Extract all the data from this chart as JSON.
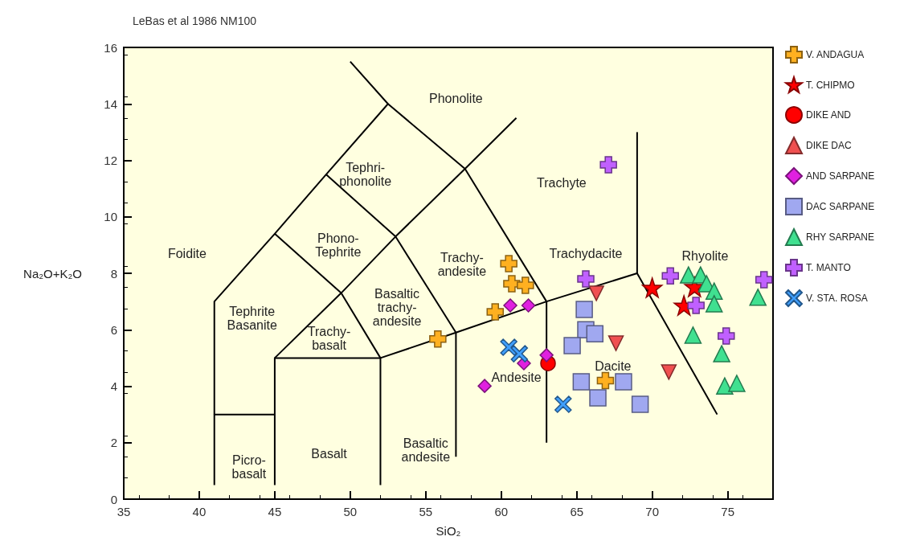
{
  "chart_data": {
    "type": "scatter",
    "title": "LeBas et al 1986 NM100",
    "xlabel": "SiO₂",
    "ylabel": "Na₂O+K₂O",
    "xlim": [
      35,
      78
    ],
    "ylim": [
      0,
      16
    ],
    "xticks": [
      35,
      40,
      45,
      50,
      55,
      60,
      65,
      70,
      75
    ],
    "yticks": [
      0,
      2,
      4,
      6,
      8,
      10,
      12,
      14,
      16
    ],
    "grid": false,
    "legend": "right",
    "series": [
      {
        "name": "V. ANDAGUA",
        "color": "#ffb020",
        "marker": "plus",
        "x": [
          60.5,
          60.7,
          61.6,
          59.6,
          55.8,
          66.9
        ],
        "values": [
          8.34,
          7.63,
          7.57,
          6.63,
          5.67,
          4.2
        ]
      },
      {
        "name": "T. CHIPMO",
        "color": "#ff0000",
        "marker": "star",
        "x": [
          70.0,
          72.8,
          72.1
        ],
        "values": [
          7.49,
          7.52,
          6.86
        ]
      },
      {
        "name": "DIKE AND",
        "color": "#ff0000",
        "marker": "circle",
        "x": [
          63.1
        ],
        "values": [
          4.81
        ]
      },
      {
        "name": "DIKE DAC",
        "color": "#f05050",
        "marker": "triangle-down",
        "x": [
          66.3,
          67.6,
          71.1
        ],
        "values": [
          7.29,
          5.52,
          4.5
        ]
      },
      {
        "name": "AND SARPANE",
        "color": "#e020e0",
        "marker": "diamond",
        "x": [
          60.6,
          61.8,
          63.0,
          61.5,
          58.9
        ],
        "values": [
          6.86,
          6.86,
          5.1,
          4.81,
          4.01
        ]
      },
      {
        "name": "DAC SARPANE",
        "color": "#a0a8f0",
        "marker": "square",
        "x": [
          65.5,
          65.6,
          66.2,
          64.7,
          65.3,
          66.4,
          68.1,
          69.2
        ],
        "values": [
          6.72,
          6.0,
          5.86,
          5.44,
          4.16,
          3.59,
          4.16,
          3.36
        ]
      },
      {
        "name": "RHY SARPANE",
        "color": "#40e090",
        "marker": "triangle",
        "x": [
          72.4,
          73.2,
          73.6,
          74.1,
          74.1,
          72.7,
          74.6,
          74.8,
          75.6,
          77.0
        ],
        "values": [
          7.94,
          7.94,
          7.63,
          7.37,
          6.92,
          5.81,
          5.15,
          4.01,
          4.1,
          7.15
        ]
      },
      {
        "name": "T. MANTO",
        "color": "#c060ff",
        "marker": "plus",
        "x": [
          67.1,
          65.6,
          71.2,
          72.9,
          74.9,
          77.4
        ],
        "values": [
          11.84,
          7.8,
          7.91,
          6.86,
          5.78,
          7.77
        ]
      },
      {
        "name": "V. STA. ROSA",
        "color": "#40a0ff",
        "marker": "cross",
        "x": [
          60.5,
          61.2,
          64.1
        ],
        "values": [
          5.38,
          5.15,
          3.36
        ]
      },
      {
        "type": "line",
        "color": "#000000",
        "marker": "none",
        "x": [
          41,
          41,
          45
        ],
        "values": [
          0.5,
          3,
          3
        ]
      },
      {
        "type": "line",
        "color": "#000000",
        "marker": "none",
        "x": [
          41,
          41,
          45,
          48.4,
          52.5,
          50
        ],
        "values": [
          3,
          7,
          9.4,
          11.5,
          14,
          15.5
        ]
      },
      {
        "type": "line",
        "color": "#000000",
        "marker": "none",
        "x": [
          45,
          45,
          52,
          57,
          63,
          69,
          74.3
        ],
        "values": [
          0.5,
          5,
          5,
          5.9,
          7,
          8,
          3
        ]
      },
      {
        "type": "line",
        "color": "#000000",
        "marker": "none",
        "x": [
          45,
          49.4,
          53,
          57.6,
          61
        ],
        "values": [
          5,
          7.3,
          9.3,
          11.7,
          13.5
        ]
      },
      {
        "type": "line",
        "color": "#000000",
        "marker": "none",
        "x": [
          52,
          52,
          49.4,
          45
        ],
        "values": [
          0.5,
          5,
          7.3,
          9.4
        ]
      },
      {
        "type": "line",
        "color": "#000000",
        "marker": "none",
        "x": [
          57,
          57,
          53,
          48.4
        ],
        "values": [
          1.5,
          5.9,
          9.3,
          11.5
        ]
      },
      {
        "type": "line",
        "color": "#000000",
        "marker": "none",
        "x": [
          63,
          63,
          57.6,
          52.5
        ],
        "values": [
          2,
          7,
          11.7,
          14
        ]
      },
      {
        "type": "line",
        "color": "#000000",
        "marker": "none",
        "x": [
          69,
          69
        ],
        "values": [
          8,
          13
        ]
      }
    ],
    "annotations": [
      "Phonolite",
      "Tephri-\nphonolite",
      "Trachyte",
      "Phono-\nTephrite",
      "Foidite",
      "Trachy-\nandesite",
      "Trachydacite",
      "Rhyolite",
      "Tephrite\nBasanite",
      "Basaltic\ntrachy-\nandesite",
      "Trachy-\nbasalt",
      "Andesite",
      "Dacite",
      "Basalt",
      "Basaltic\nandesite",
      "Picro-\nbasalt"
    ]
  }
}
